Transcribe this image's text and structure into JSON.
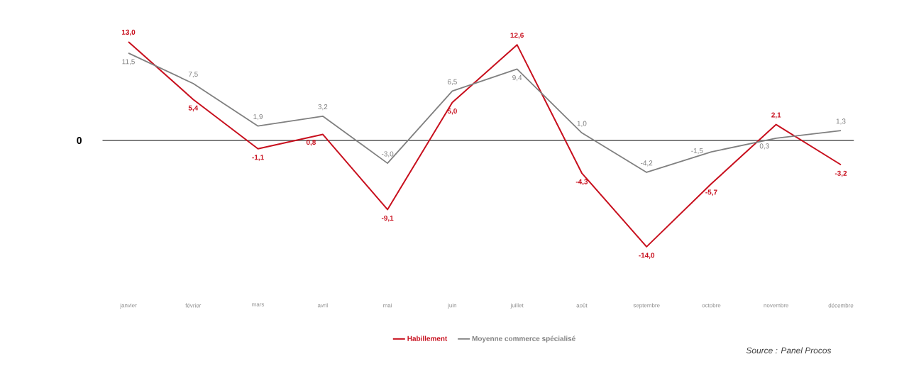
{
  "chart_data": {
    "type": "line",
    "categories": [
      "janvier",
      "février",
      "mars",
      "avril",
      "mai",
      "juin",
      "juillet",
      "août",
      "septembre",
      "octobre",
      "novembre",
      "décembre"
    ],
    "series": [
      {
        "name": "Habillement",
        "color": "#c8101e",
        "values": [
          13.0,
          5.4,
          -1.1,
          0.8,
          -9.1,
          5.0,
          12.6,
          -4.3,
          -14.0,
          -5.7,
          2.1,
          -3.2
        ],
        "value_labels": [
          "13,0",
          "5,4",
          "-1,1",
          "0,8",
          "-9,1",
          "5,0",
          "12,6",
          "-4,3",
          "-14,0",
          "-5,7",
          "2,1",
          "-3,2"
        ]
      },
      {
        "name": "Moyenne commerce spécialisé",
        "color": "#808080",
        "values": [
          11.5,
          7.5,
          1.9,
          3.2,
          -3.0,
          6.5,
          9.4,
          1.0,
          -4.2,
          -1.5,
          0.3,
          1.3
        ],
        "value_labels": [
          "11,5",
          "7,5",
          "1,9",
          "3,2",
          "-3,0",
          "6,5",
          "9,4",
          "1,0",
          "-4,2",
          "-1,5",
          "0,3",
          "1,3"
        ]
      }
    ],
    "ref_lines": [
      {
        "axis": "y",
        "value": 0,
        "label": "0",
        "color": "#000000"
      }
    ],
    "legend": "bottom",
    "marker": "none",
    "line_style": "solid",
    "annotations": [
      "Source : Panel Procos"
    ]
  }
}
